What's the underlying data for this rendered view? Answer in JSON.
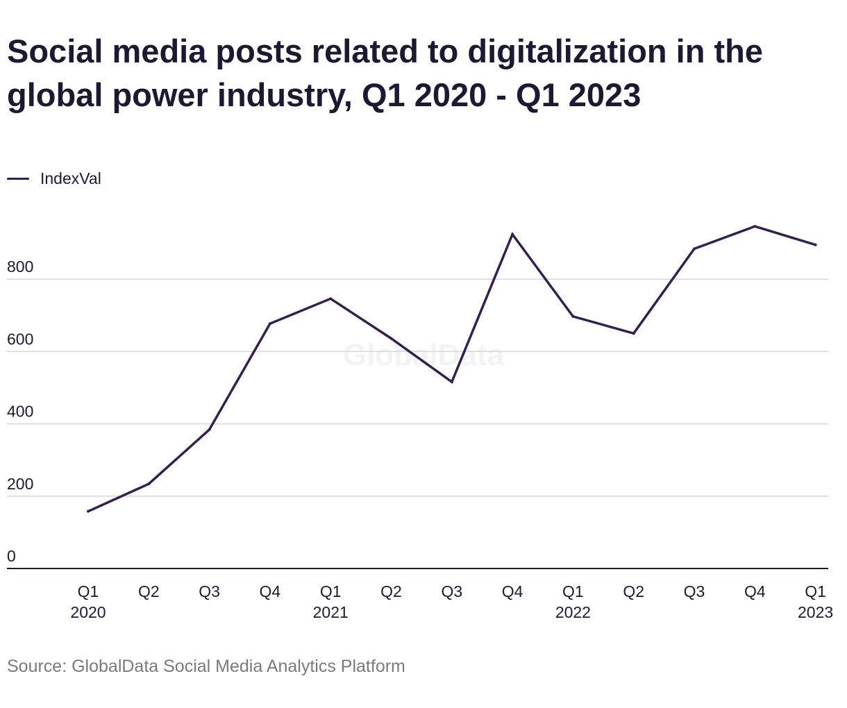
{
  "chart_data": {
    "type": "line",
    "title": "Social media posts related to digitalization in the global power industry, Q1 2020 - Q1 2023",
    "categories": [
      [
        "Q1",
        "2020"
      ],
      [
        "Q2",
        ""
      ],
      [
        "Q3",
        ""
      ],
      [
        "Q4",
        ""
      ],
      [
        "Q1",
        "2021"
      ],
      [
        "Q2",
        ""
      ],
      [
        "Q3",
        ""
      ],
      [
        "Q4",
        ""
      ],
      [
        "Q1",
        "2022"
      ],
      [
        "Q2",
        ""
      ],
      [
        "Q3",
        ""
      ],
      [
        "Q4",
        ""
      ],
      [
        "Q1",
        "2023"
      ]
    ],
    "series": [
      {
        "name": "IndexVal",
        "color": "#33204f",
        "values": [
          158,
          234,
          384,
          677,
          746,
          636,
          516,
          924,
          697,
          650,
          884,
          946,
          895
        ]
      }
    ],
    "yticks": [
      "0",
      "200",
      "400",
      "600",
      "800"
    ],
    "ylim": [
      0,
      1000
    ],
    "xlabel": "",
    "ylabel": "",
    "legend_position": "top-left",
    "grid": true
  },
  "watermark": "GlobalData",
  "source": "Source: GlobalData Social Media Analytics Platform"
}
